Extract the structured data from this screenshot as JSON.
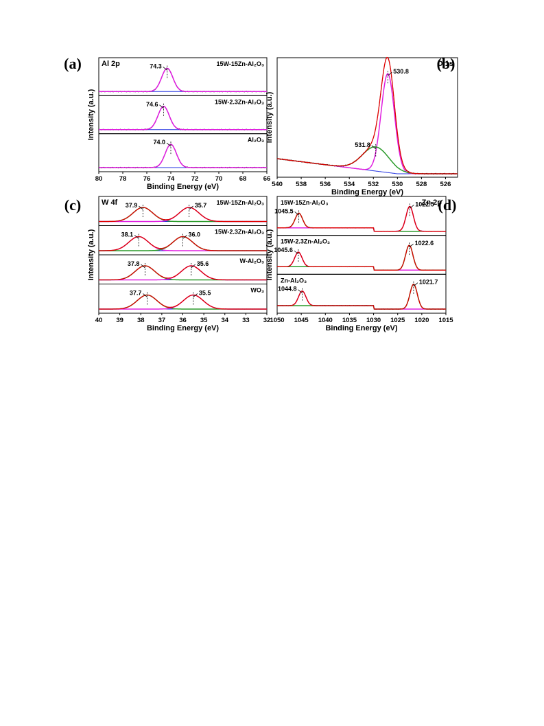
{
  "colors": {
    "raw": "#000000",
    "envelope": "#e00000",
    "component_pink": "#e020e0",
    "component_green": "#2a9a2a",
    "background": "#2030e0"
  },
  "chart_data": [
    {
      "type": "line",
      "panel": "(a)",
      "title": "Al 2p",
      "xlabel": "Binding Energy (eV)",
      "ylabel": "Intensity (a.u.)",
      "xlim": [
        80,
        66
      ],
      "x_ticks": [
        80,
        78,
        76,
        74,
        72,
        70,
        68,
        66
      ],
      "grid": false,
      "subplots": [
        {
          "sample": "15W-15Zn-Al2O3",
          "sample_label": "15W-15Zn-Al₂O₃",
          "peaks": [
            {
              "center": 74.3,
              "label": "74.3",
              "component": "pink"
            }
          ]
        },
        {
          "sample": "15W-2.3Zn-Al2O3",
          "sample_label": "15W-2.3Zn-Al₂O₃",
          "peaks": [
            {
              "center": 74.6,
              "label": "74.6",
              "component": "pink"
            }
          ]
        },
        {
          "sample": "Al2O3",
          "sample_label": "Al₂O₃",
          "peaks": [
            {
              "center": 74.0,
              "label": "74.0",
              "component": "pink"
            }
          ]
        }
      ]
    },
    {
      "type": "line",
      "panel": "(b)",
      "title": "O 1s",
      "xlabel": "Binding Energy (eV)",
      "ylabel": "Intensity (a.u.)",
      "xlim": [
        540,
        525
      ],
      "x_ticks": [
        540,
        538,
        536,
        534,
        532,
        530,
        528,
        526
      ],
      "grid": false,
      "subplots": [
        {
          "sample": "",
          "sample_label": "",
          "peaks": [
            {
              "center": 530.8,
              "label": "530.8",
              "component": "pink"
            },
            {
              "center": 531.8,
              "label": "531.8",
              "component": "green"
            }
          ]
        }
      ]
    },
    {
      "type": "line",
      "panel": "(c)",
      "title": "W 4f",
      "xlabel": "Binding Energy (eV)",
      "ylabel": "Intensity (a.u.)",
      "xlim": [
        40,
        32
      ],
      "x_ticks": [
        40,
        39,
        38,
        37,
        36,
        35,
        34,
        33,
        32
      ],
      "grid": false,
      "subplots": [
        {
          "sample": "15W-15Zn-Al2O3",
          "sample_label": "15W-15Zn-Al₂O₃",
          "peaks": [
            {
              "center": 37.9,
              "label": "37.9",
              "component": "green"
            },
            {
              "center": 35.7,
              "label": "35.7",
              "component": "pink"
            }
          ]
        },
        {
          "sample": "15W-2.3Zn-Al2O3",
          "sample_label": "15W-2.3Zn-Al₂O₃",
          "peaks": [
            {
              "center": 38.1,
              "label": "38.1",
              "component": "pink"
            },
            {
              "center": 36.0,
              "label": "36.0",
              "component": "green"
            }
          ]
        },
        {
          "sample": "W-Al2O3",
          "sample_label": "W-Al₂O₃",
          "peaks": [
            {
              "center": 37.8,
              "label": "37.8",
              "component": "green"
            },
            {
              "center": 35.6,
              "label": "35.6",
              "component": "pink"
            }
          ]
        },
        {
          "sample": "WO3",
          "sample_label": "WO₃",
          "peaks": [
            {
              "center": 37.7,
              "label": "37.7",
              "component": "green"
            },
            {
              "center": 35.5,
              "label": "35.5",
              "component": "pink"
            }
          ]
        }
      ]
    },
    {
      "type": "line",
      "panel": "(d)",
      "title": "Zn 2p",
      "xlabel": "Binding Energy (eV)",
      "ylabel": "Intensity (a.u.)",
      "xlim": [
        1050,
        1015
      ],
      "x_ticks": [
        1050,
        1045,
        1040,
        1035,
        1030,
        1025,
        1020,
        1015
      ],
      "grid": false,
      "subplots": [
        {
          "sample": "15W-15Zn-Al2O3",
          "sample_label": "15W-15Zn-Al₂O₃",
          "peaks": [
            {
              "center": 1045.5,
              "label": "1045.5",
              "component": "green"
            },
            {
              "center": 1022.5,
              "label": "1022.5",
              "component": "pink"
            }
          ]
        },
        {
          "sample": "15W-2.3Zn-Al2O3",
          "sample_label": "15W-2.3Zn-Al₂O₃",
          "peaks": [
            {
              "center": 1045.6,
              "label": "1045.6",
              "component": "pink"
            },
            {
              "center": 1022.6,
              "label": "1022.6",
              "component": "green"
            }
          ]
        },
        {
          "sample": "Zn-Al2O3",
          "sample_label": "Zn-Al₂O₃",
          "peaks": [
            {
              "center": 1044.8,
              "label": "1044.8",
              "component": "pink"
            },
            {
              "center": 1021.7,
              "label": "1021.7",
              "component": "green"
            }
          ]
        }
      ]
    }
  ]
}
